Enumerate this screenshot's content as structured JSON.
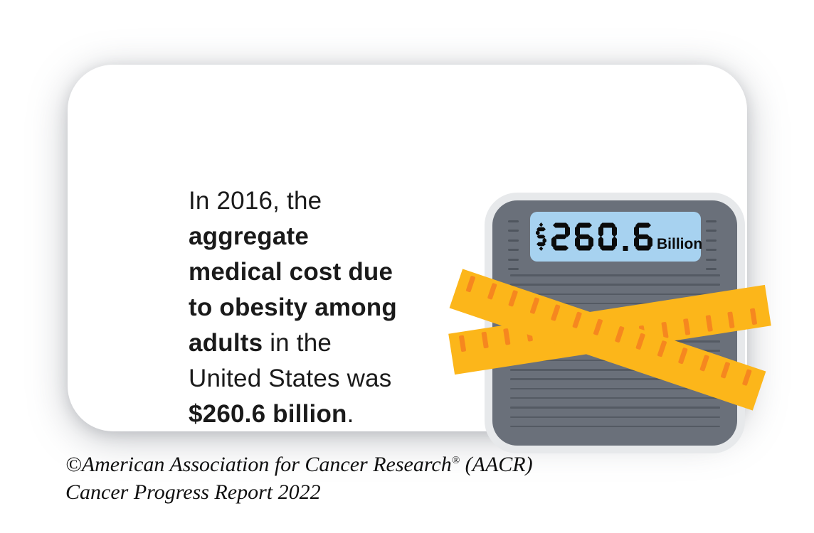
{
  "colors": {
    "card_white": "#ffffff",
    "text_black": "#1a1a1a",
    "scale_frame": "#e7e9eb",
    "scale_body": "#6a707a",
    "scale_line": "#545a63",
    "scale_dash": "#4f555e",
    "display_blue": "#a7d2f0",
    "digit_black": "#0b0b0b",
    "tape_yellow": "#fcb61a",
    "tape_tick": "#f6871f"
  },
  "statement": {
    "line1": "In 2016, the",
    "line2": "aggregate",
    "line3": "medical cost due",
    "line4": "to obesity among",
    "line5_bold": "adults",
    "line5_regular": " in the",
    "line6": "United States was",
    "line7_bold": "$260.6 billion",
    "line7_regular": "."
  },
  "scale_display": {
    "value": "$260.6",
    "unit": "Billion"
  },
  "footer": {
    "line1_text": "©American Association for Cancer Research",
    "line1_registered": "®",
    "line1_suffix": " (AACR)",
    "line2_text": "Cancer Progress Report 2022"
  }
}
